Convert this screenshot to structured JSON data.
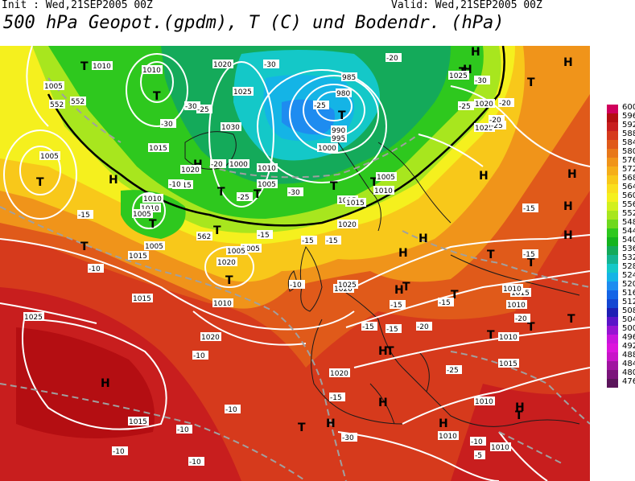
{
  "header": {
    "init": "Init : Wed,21SEP2005 00Z",
    "valid": "Valid: Wed,21SEP2005 00Z",
    "title": "500 hPa Geopot.(gpdm), T (C) und Bodendr. (hPa)"
  },
  "legend": {
    "values": [
      "600",
      "596",
      "592",
      "588",
      "584",
      "580",
      "576",
      "572",
      "568",
      "564",
      "560",
      "556",
      "552",
      "548",
      "544",
      "540",
      "536",
      "532",
      "528",
      "524",
      "520",
      "516",
      "512",
      "508",
      "504",
      "500",
      "496",
      "492",
      "488",
      "484",
      "480",
      "476"
    ],
    "colors": [
      "#d0005c",
      "#b40e12",
      "#c81e1e",
      "#d63a1c",
      "#e05a1a",
      "#e8781a",
      "#f0941a",
      "#f5ae1a",
      "#f8c81a",
      "#fadf1e",
      "#f5f01e",
      "#d2f01e",
      "#a8e61e",
      "#6ed81e",
      "#2ec81e",
      "#14b41e",
      "#14aa5a",
      "#14b492",
      "#14c8c8",
      "#14b4e6",
      "#1e8cf0",
      "#1464e6",
      "#1446d2",
      "#1e1eb4",
      "#5a14c8",
      "#9614d2",
      "#c814dc",
      "#dc14dc",
      "#c814c8",
      "#a014a0",
      "#7a147a",
      "#5a145a"
    ]
  },
  "map": {
    "highs": [
      "H",
      "H",
      "H",
      "H",
      "H",
      "H",
      "H",
      "H",
      "H",
      "H",
      "H",
      "H",
      "H",
      "H",
      "H",
      "H",
      "H",
      "H"
    ],
    "lows": [
      "T",
      "T",
      "T",
      "T",
      "T",
      "T",
      "T",
      "T",
      "T",
      "T",
      "T",
      "T",
      "T",
      "T",
      "T",
      "T",
      "T",
      "T",
      "T",
      "T",
      "T",
      "T",
      "T",
      "T"
    ],
    "pressure_labels": [
      "1005",
      "1010",
      "1005",
      "1020",
      "1025",
      "1030",
      "1015",
      "1010",
      "1005",
      "1010",
      "1020",
      "1015",
      "1010",
      "1005",
      "1015",
      "1020",
      "1005",
      "1005",
      "1010",
      "1015",
      "985",
      "980",
      "990",
      "995",
      "1000",
      "1005",
      "1010",
      "1015",
      "1020",
      "1025",
      "1025",
      "1020",
      "1015",
      "1010",
      "1005",
      "1000",
      "1020",
      "1010",
      "1015",
      "1010",
      "1025",
      "1020",
      "1015",
      "1010",
      "1010",
      "1010",
      "1020",
      "1025",
      "1015",
      "1010"
    ],
    "temp_labels": [
      "-30",
      "-30",
      "-25",
      "-20",
      "-30",
      "-25",
      "-30",
      "-25",
      "-20",
      "-25",
      "-30",
      "-25",
      "-20",
      "-15",
      "-20",
      "-15",
      "-15",
      "-10",
      "-15",
      "-10",
      "-15",
      "-15",
      "-15",
      "-10",
      "-10",
      "-15",
      "-15",
      "-10",
      "-10",
      "-10",
      "-10",
      "-5",
      "-30",
      "-20",
      "-25",
      "-20",
      "-15",
      "-15",
      "-10"
    ],
    "gpdm_labels": [
      "552",
      "552",
      "562"
    ]
  }
}
